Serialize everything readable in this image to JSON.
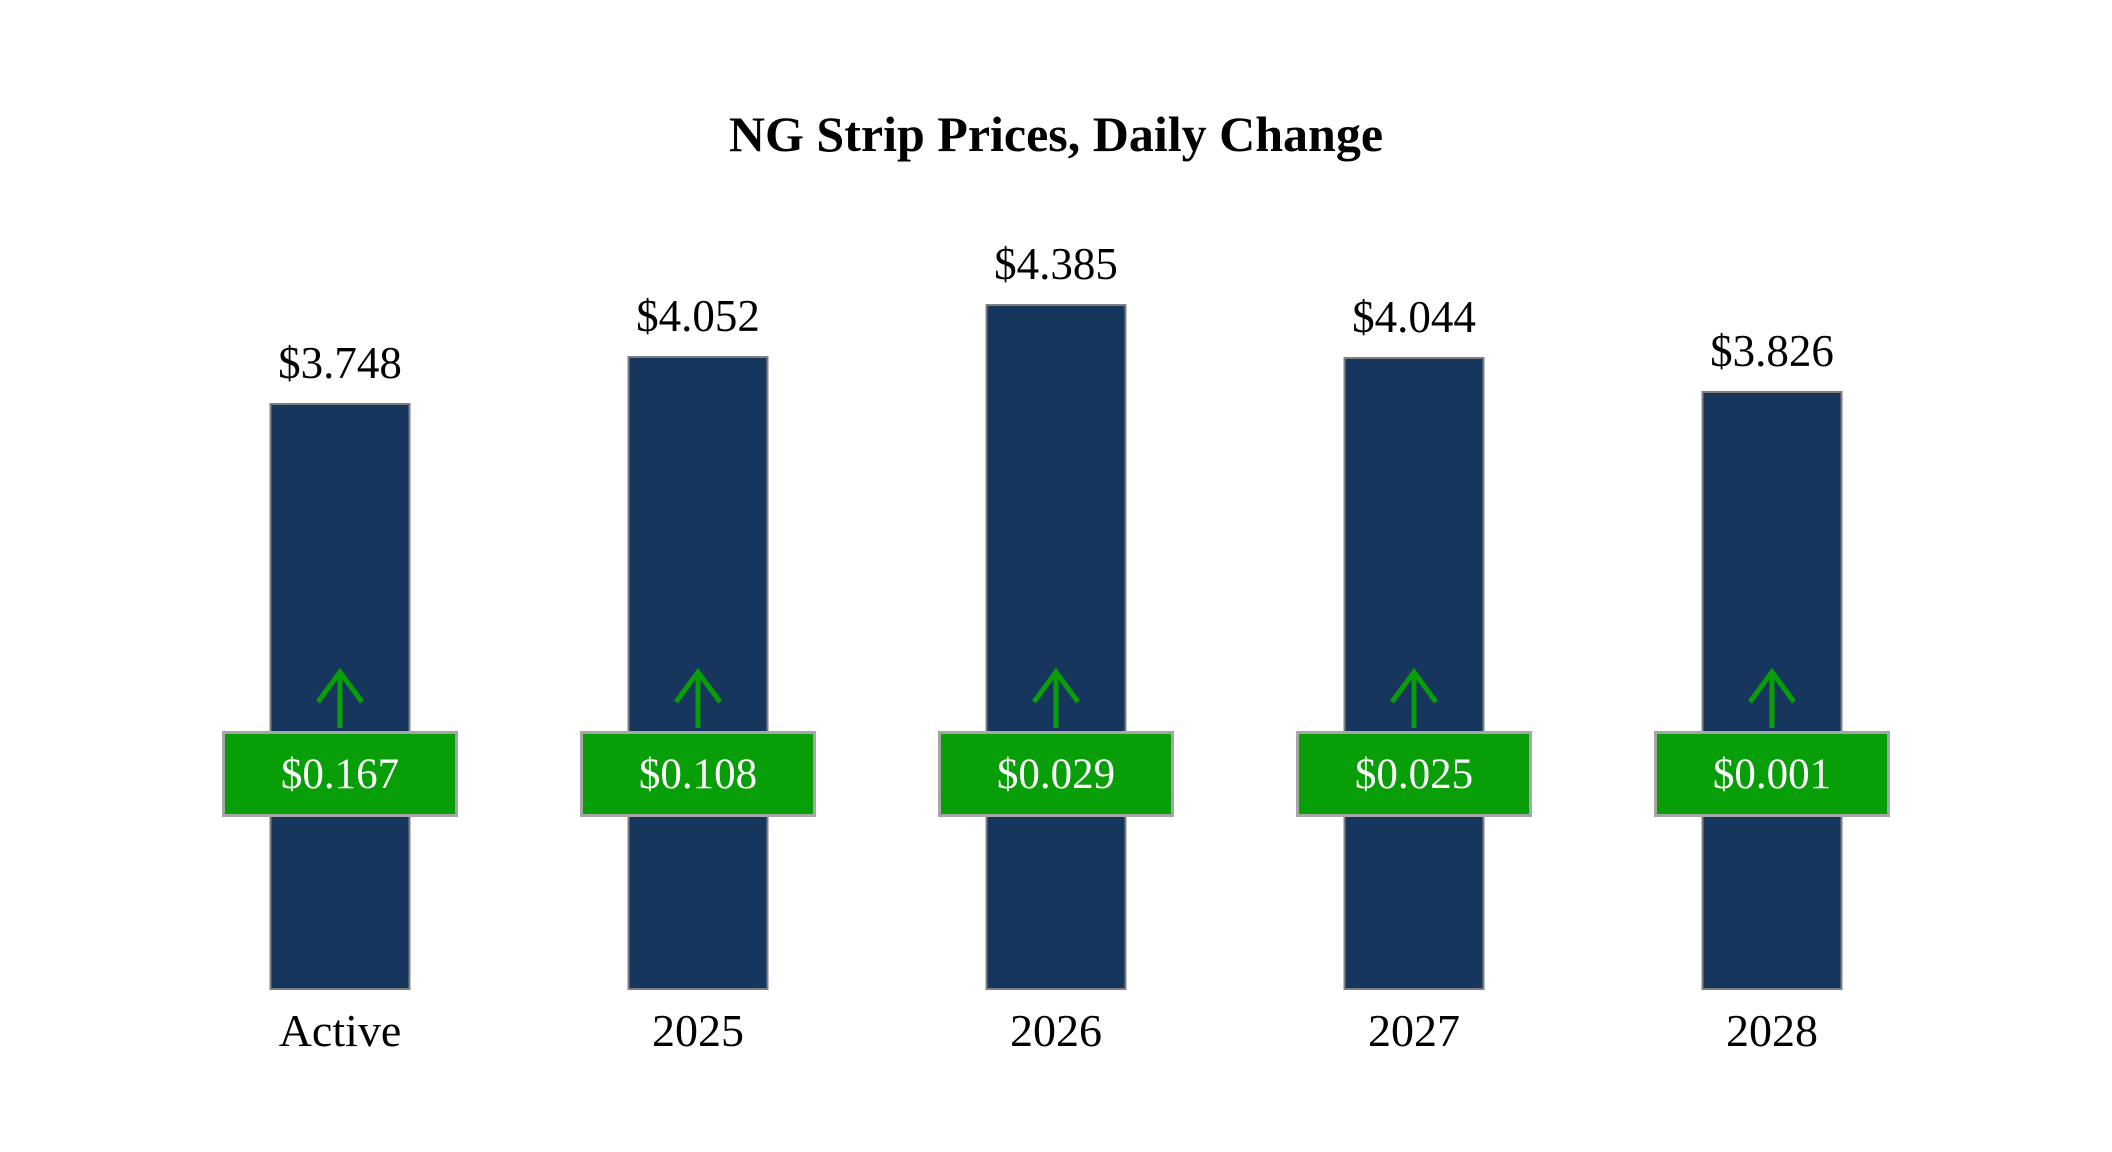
{
  "title": "NG Strip Prices, Daily Change",
  "chart_data": {
    "type": "bar",
    "title": "NG Strip Prices, Daily Change",
    "xlabel": "",
    "ylabel": "",
    "categories": [
      "Active",
      "2025",
      "2026",
      "2027",
      "2028"
    ],
    "values": [
      3.748,
      4.052,
      4.385,
      4.044,
      3.826
    ],
    "value_labels": [
      "$3.748",
      "$4.052",
      "$4.385",
      "$4.044",
      "$3.826"
    ],
    "series": [
      {
        "name": "Strip Price",
        "values": [
          3.748,
          4.052,
          4.385,
          4.044,
          3.826
        ]
      },
      {
        "name": "Daily Change",
        "values": [
          0.167,
          0.108,
          0.029,
          0.025,
          0.001
        ]
      }
    ],
    "change_labels": [
      "$0.167",
      "$0.108",
      "$0.029",
      "$0.025",
      "$0.001"
    ],
    "change_directions": [
      "up",
      "up",
      "up",
      "up",
      "up"
    ],
    "ylim": [
      0,
      4.385
    ],
    "grid": false,
    "legend": false,
    "colors": {
      "bar": "#17365D",
      "badge": "#089E08",
      "badge_border": "#a6a6a6",
      "arrow": "#089E08",
      "text": "#000000",
      "badge_text": "#ffffff"
    }
  }
}
